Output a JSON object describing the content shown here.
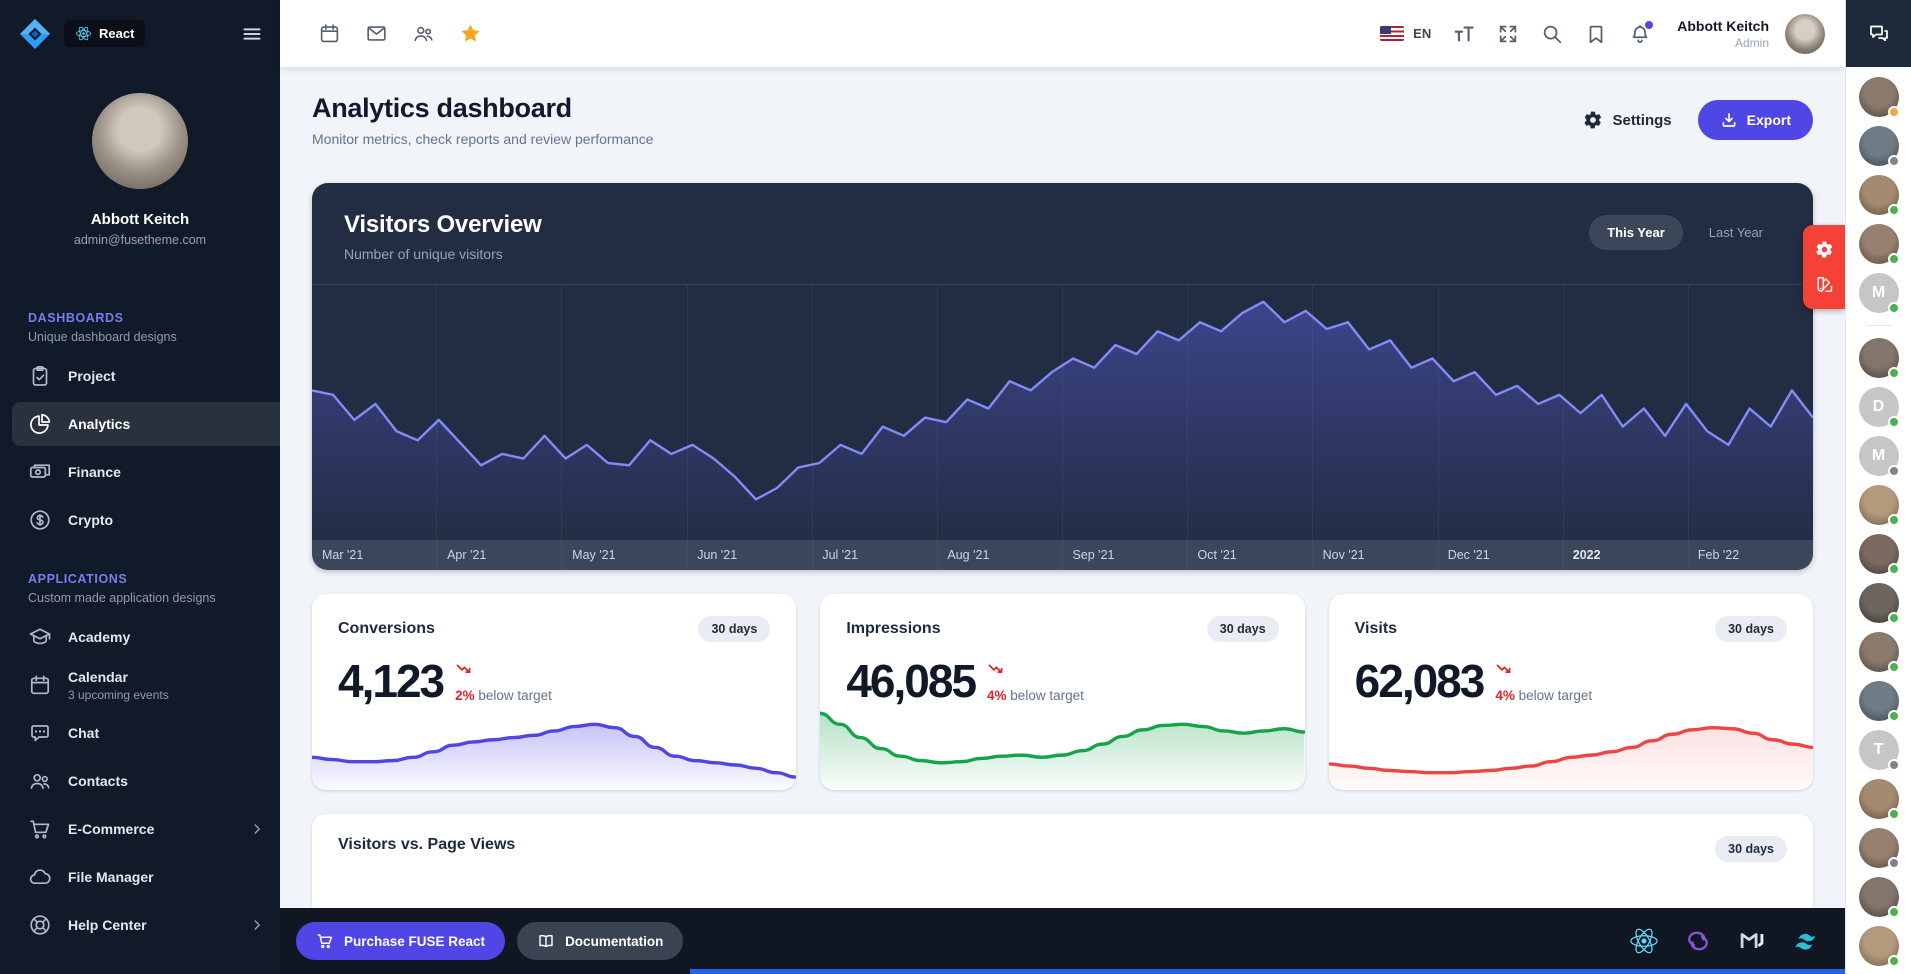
{
  "theme": {
    "accent": "#4f46e5",
    "sidebar_bg": "#111a29",
    "card_dark": "#222c42",
    "fab_red": "#f44336",
    "star_yellow": "#f59e0b",
    "trend_down_red": "#dc2626",
    "progress_blue": "#2563eb"
  },
  "sidebar": {
    "logo_icon": "fuse-diamond-logo",
    "badge_label": "React",
    "badge_icon": "react-atom-icon",
    "menu_icon": "hamburger-icon",
    "user": {
      "name": "Abbott Keitch",
      "email": "admin@fusetheme.com"
    },
    "sections": [
      {
        "title": "DASHBOARDS",
        "subtitle": "Unique dashboard designs",
        "items": [
          {
            "label": "Project",
            "icon": "clipboard-check-icon"
          },
          {
            "label": "Analytics",
            "icon": "pie-chart-icon",
            "active": true
          },
          {
            "label": "Finance",
            "icon": "banknotes-icon"
          },
          {
            "label": "Crypto",
            "icon": "currency-dollar-icon"
          }
        ]
      },
      {
        "title": "APPLICATIONS",
        "subtitle": "Custom made application designs",
        "items": [
          {
            "label": "Academy",
            "icon": "academic-cap-icon"
          },
          {
            "label": "Calendar",
            "icon": "calendar-icon",
            "subtitle": "3 upcoming events"
          },
          {
            "label": "Chat",
            "icon": "chat-bubble-icon"
          },
          {
            "label": "Contacts",
            "icon": "user-group-icon"
          },
          {
            "label": "E-Commerce",
            "icon": "shopping-cart-icon",
            "chevron": true
          },
          {
            "label": "File Manager",
            "icon": "cloud-icon"
          },
          {
            "label": "Help Center",
            "icon": "help-circle-icon",
            "chevron": true
          }
        ]
      }
    ]
  },
  "toolbar": {
    "left_icons": [
      "calendar-icon",
      "mail-icon",
      "contacts-icon",
      "star-icon"
    ],
    "language": "EN",
    "flag_icon": "us-flag-icon",
    "right_icons": [
      "font-size-icon",
      "fullscreen-icon",
      "search-icon",
      "bookmark-icon",
      "bell-icon"
    ],
    "notification_dot": true,
    "user": {
      "name": "Abbott Keitch",
      "role": "Admin"
    },
    "panel_toggle_icon": "chat-panel-icon"
  },
  "header": {
    "title": "Analytics dashboard",
    "subtitle": "Monitor metrics, check reports and review performance",
    "settings_label": "Settings",
    "export_label": "Export"
  },
  "visitors_overview": {
    "title": "Visitors Overview",
    "subtitle": "Number of unique visitors",
    "tabs": [
      {
        "label": "This Year",
        "active": true
      },
      {
        "label": "Last Year",
        "active": false
      }
    ]
  },
  "fab": {
    "icons": [
      "gear-icon",
      "swatch-icon"
    ]
  },
  "chart_data": [
    {
      "id": "visitors_overview",
      "type": "area",
      "title": "Visitors Overview",
      "xlabel": "",
      "ylabel": "",
      "ylim": [
        0,
        100
      ],
      "grid": "vertical-months",
      "legend": "none",
      "categories": [
        "Mar '21",
        "Apr '21",
        "May '21",
        "Jun '21",
        "Jul '21",
        "Aug '21",
        "Sep '21",
        "Oct '21",
        "Nov '21",
        "Dec '21",
        "2022",
        "Feb '22"
      ],
      "emphasized_category": "2022",
      "color": "#818cf8",
      "values": [
        58,
        56,
        45,
        52,
        40,
        36,
        45,
        35,
        25,
        30,
        28,
        38,
        28,
        34,
        26,
        25,
        36,
        30,
        34,
        28,
        20,
        10,
        15,
        24,
        26,
        34,
        30,
        42,
        38,
        46,
        44,
        54,
        50,
        62,
        58,
        66,
        72,
        68,
        78,
        74,
        84,
        80,
        88,
        84,
        92,
        97,
        88,
        93,
        85,
        88,
        76,
        80,
        68,
        72,
        62,
        66,
        56,
        60,
        52,
        56,
        48,
        56,
        42,
        50,
        38,
        52,
        40,
        34,
        50,
        42,
        58,
        46
      ]
    },
    {
      "id": "conversions_spark",
      "type": "area",
      "title": "Conversions trend (30 days)",
      "color": "#4f46e5",
      "values": [
        28,
        26,
        24,
        24,
        25,
        28,
        33,
        39,
        42,
        44,
        46,
        48,
        52,
        56,
        58,
        55,
        47,
        37,
        29,
        25,
        23,
        21,
        18,
        14,
        10
      ]
    },
    {
      "id": "impressions_spark",
      "type": "area",
      "title": "Impressions trend (30 days)",
      "color": "#16a34a",
      "values": [
        68,
        58,
        46,
        36,
        29,
        25,
        23,
        24,
        27,
        29,
        30,
        28,
        30,
        34,
        40,
        47,
        53,
        57,
        58,
        56,
        52,
        50,
        52,
        54,
        51
      ]
    },
    {
      "id": "visits_spark",
      "type": "area",
      "title": "Visits trend (30 days)",
      "color": "#ef4444",
      "values": [
        22,
        20,
        18,
        16,
        15,
        14,
        14,
        15,
        16,
        18,
        20,
        24,
        28,
        30,
        33,
        37,
        43,
        49,
        53,
        55,
        54,
        50,
        44,
        40,
        37
      ]
    }
  ],
  "stat_cards": [
    {
      "title": "Conversions",
      "badge": "30 days",
      "value": "4,123",
      "delta": "2%",
      "delta_text": "below target",
      "trend_icon": "trending-down-icon",
      "chart_id": "conversions_spark"
    },
    {
      "title": "Impressions",
      "badge": "30 days",
      "value": "46,085",
      "delta": "4%",
      "delta_text": "below target",
      "trend_icon": "trending-down-icon",
      "chart_id": "impressions_spark"
    },
    {
      "title": "Visits",
      "badge": "30 days",
      "value": "62,083",
      "delta": "4%",
      "delta_text": "below target",
      "trend_icon": "trending-down-icon",
      "chart_id": "visits_spark"
    }
  ],
  "visitors_vs": {
    "title": "Visitors vs. Page Views",
    "badge": "30 days"
  },
  "footer": {
    "purchase_label": "Purchase FUSE React",
    "purchase_icon": "cart-icon",
    "docs_label": "Documentation",
    "docs_icon": "book-icon",
    "tech_logos": [
      "react-logo",
      "redux-logo",
      "mui-logo",
      "tailwind-logo"
    ]
  },
  "right_rail": {
    "toggle_icon": "chat-panel-icon",
    "avatars": [
      {
        "initial": "",
        "status": "amber"
      },
      {
        "initial": "",
        "status": "gray"
      },
      {
        "initial": "",
        "status": "green"
      },
      {
        "initial": "",
        "status": "green"
      },
      {
        "initial": "M",
        "status": "green"
      },
      {
        "divider": true
      },
      {
        "initial": "",
        "status": "green"
      },
      {
        "initial": "D",
        "status": "green"
      },
      {
        "initial": "M",
        "status": "gray"
      },
      {
        "initial": "",
        "status": "green"
      },
      {
        "initial": "",
        "status": "green"
      },
      {
        "initial": "",
        "status": "green"
      },
      {
        "initial": "",
        "status": "green"
      },
      {
        "initial": "",
        "status": "green"
      },
      {
        "initial": "T",
        "status": "gray"
      },
      {
        "initial": "",
        "status": "green"
      },
      {
        "initial": "",
        "status": "gray"
      },
      {
        "initial": "",
        "status": "green"
      },
      {
        "initial": "",
        "status": "green"
      }
    ]
  }
}
